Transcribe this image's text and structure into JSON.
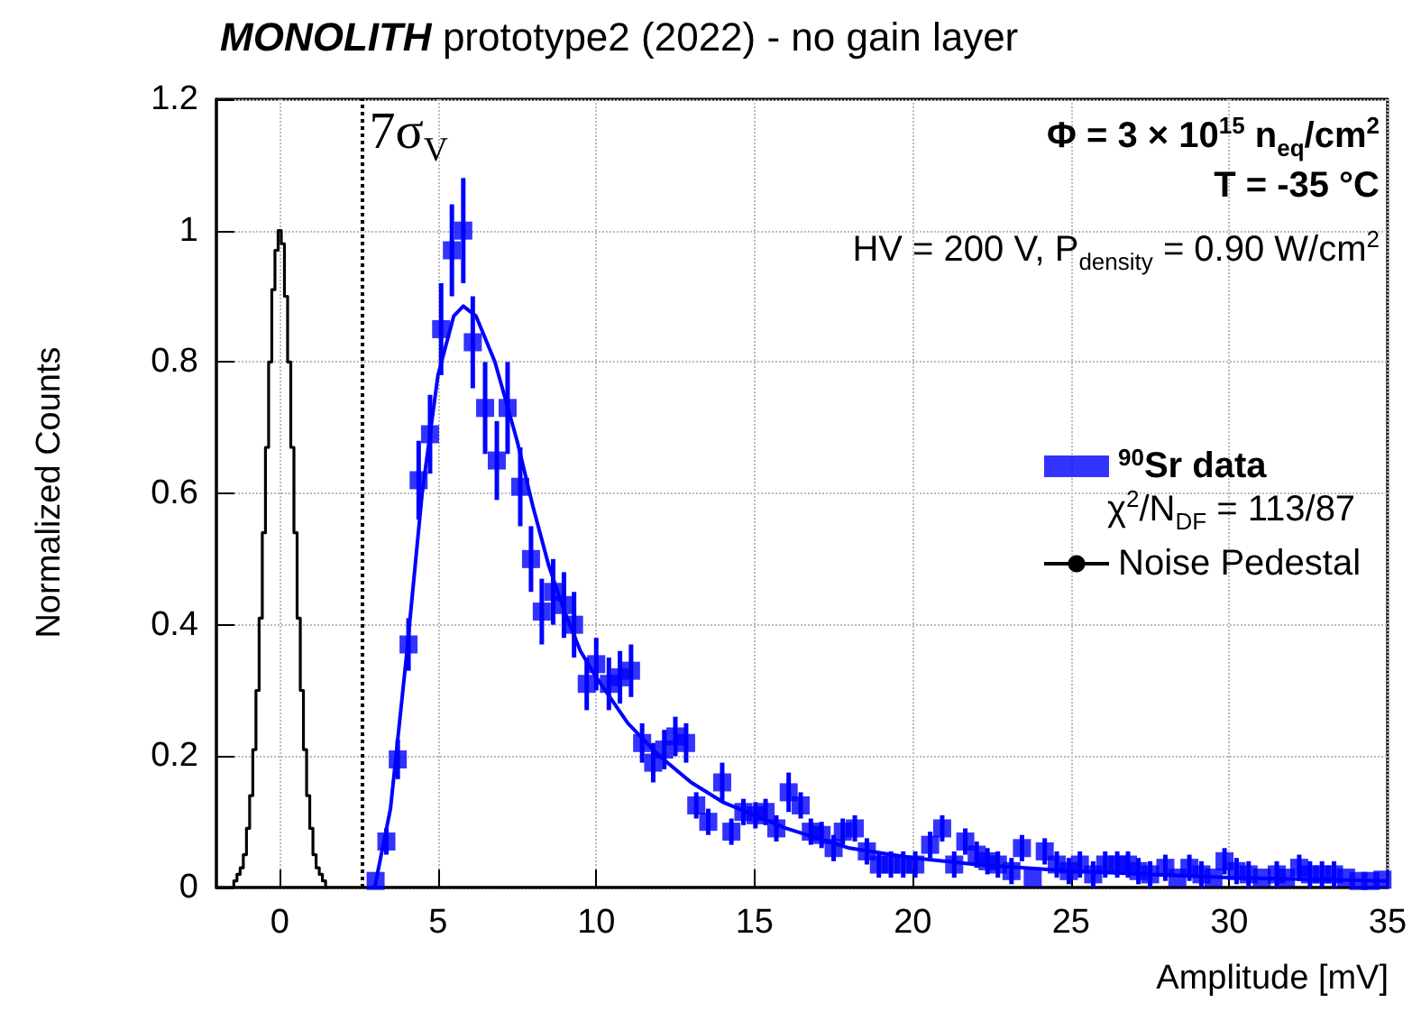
{
  "chart_data": {
    "type": "scatter",
    "title": "MONOLITH prototype2 (2022) - no gain layer",
    "xlabel": "Amplitude [mV]",
    "ylabel": "Normalized Counts",
    "annotations": [
      "Φ = 3 × 10$^{15}$ n$_{eq}$/cm$^{2}$",
      "T = -35 °C",
      "HV = 200 V, P$_{density}$ = 0.90 W/cm$^{2}$",
      "χ$^{2}$/N$_{DF}$ = 113/87"
    ],
    "xlim": [
      -2,
      35
    ],
    "xticks": [
      0,
      5,
      10,
      15,
      20,
      25,
      30,
      35
    ],
    "ylim": [
      0,
      1.2
    ],
    "yticks": [
      0,
      0.2,
      0.4,
      0.6,
      0.8,
      1,
      1.2
    ],
    "grid": true,
    "legend": "right",
    "ref_lines": [
      {
        "axis": "x",
        "value": 2.6,
        "label": "7σ$_{V}$",
        "color": "#000000",
        "line_style": "dotted"
      }
    ],
    "series": [
      {
        "name": "$^{90}$Sr data",
        "marker": "square",
        "color": "#0000ff",
        "x": [
          3.03,
          3.37,
          3.73,
          4.07,
          4.39,
          4.75,
          5.1,
          5.44,
          5.8,
          6.1,
          6.49,
          6.86,
          7.2,
          7.6,
          7.94,
          8.28,
          8.64,
          8.98,
          9.3,
          9.7,
          10.0,
          10.4,
          10.75,
          11.1,
          11.45,
          11.8,
          12.15,
          12.5,
          12.84,
          13.16,
          13.54,
          13.98,
          14.27,
          14.65,
          15.03,
          15.35,
          15.69,
          16.08,
          16.46,
          16.78,
          17.12,
          17.5,
          17.79,
          18.17,
          18.55,
          18.93,
          19.31,
          19.7,
          20.08,
          20.55,
          20.93,
          21.31,
          21.66,
          22.02,
          22.36,
          22.69,
          23.12,
          23.45,
          23.79,
          24.17,
          24.55,
          24.93,
          25.28,
          25.7,
          26.08,
          26.46,
          26.8,
          27.13,
          27.5,
          27.98,
          28.36,
          28.74,
          29.12,
          29.5,
          29.85,
          30.23,
          30.61,
          31.03,
          31.5,
          31.79,
          32.21,
          32.55,
          32.93,
          33.31,
          33.69,
          34.08,
          34.46,
          34.84
        ],
        "values": [
          0.01,
          0.07,
          0.195,
          0.37,
          0.62,
          0.69,
          0.85,
          0.97,
          1.0,
          0.83,
          0.73,
          0.65,
          0.73,
          0.61,
          0.5,
          0.42,
          0.45,
          0.43,
          0.4,
          0.31,
          0.34,
          0.31,
          0.32,
          0.33,
          0.22,
          0.19,
          0.21,
          0.23,
          0.22,
          0.125,
          0.1,
          0.16,
          0.085,
          0.115,
          0.11,
          0.115,
          0.09,
          0.145,
          0.125,
          0.085,
          0.08,
          0.06,
          0.085,
          0.09,
          0.055,
          0.035,
          0.035,
          0.035,
          0.035,
          0.065,
          0.09,
          0.035,
          0.07,
          0.05,
          0.04,
          0.035,
          0.025,
          0.06,
          0.015,
          0.055,
          0.035,
          0.025,
          0.035,
          0.02,
          0.035,
          0.035,
          0.035,
          0.025,
          0.02,
          0.03,
          0.015,
          0.03,
          0.02,
          0.015,
          0.04,
          0.025,
          0.02,
          0.015,
          0.02,
          0.015,
          0.03,
          0.02,
          0.02,
          0.02,
          0.015,
          0.01,
          0.01,
          0.012
        ],
        "errors": [
          null,
          0.02,
          0.03,
          0.04,
          0.06,
          0.06,
          0.07,
          0.07,
          0.08,
          0.07,
          0.07,
          0.06,
          0.07,
          0.06,
          0.05,
          0.05,
          0.05,
          0.05,
          0.05,
          0.04,
          0.04,
          0.04,
          0.04,
          0.04,
          0.03,
          0.03,
          0.03,
          0.03,
          0.03,
          0.02,
          0.02,
          0.03,
          0.02,
          0.02,
          0.02,
          0.02,
          0.02,
          0.03,
          0.02,
          0.02,
          0.02,
          0.02,
          0.02,
          0.02,
          0.02,
          0.02,
          0.02,
          0.02,
          0.02,
          0.02,
          0.02,
          0.02,
          0.02,
          0.02,
          0.02,
          0.02,
          0.02,
          0.02,
          null,
          0.02,
          0.02,
          0.02,
          0.02,
          0.02,
          0.02,
          0.02,
          0.02,
          0.02,
          0.02,
          0.02,
          null,
          0.02,
          0.02,
          null,
          0.02,
          0.02,
          0.02,
          null,
          0.02,
          null,
          0.02,
          0.02,
          0.02,
          0.02,
          null,
          null,
          null,
          null
        ]
      },
      {
        "type": "line",
        "color": "#0000ff",
        "x": [
          3.0,
          3.5,
          4.0,
          4.5,
          5.0,
          5.5,
          5.8,
          6.2,
          6.8,
          7.5,
          8.0,
          8.5,
          9.0,
          9.5,
          10,
          11,
          12,
          13,
          14,
          15,
          16,
          17,
          18,
          20,
          22,
          25,
          30,
          35
        ],
        "values": [
          0.0,
          0.12,
          0.35,
          0.6,
          0.78,
          0.87,
          0.885,
          0.87,
          0.8,
          0.68,
          0.58,
          0.49,
          0.42,
          0.36,
          0.32,
          0.25,
          0.2,
          0.16,
          0.13,
          0.11,
          0.09,
          0.075,
          0.06,
          0.045,
          0.035,
          0.025,
          0.015,
          0.01
        ]
      },
      {
        "name": "Noise Pedestal",
        "type": "step",
        "color": "#000000",
        "x": [
          -1.5,
          -1.4,
          -1.3,
          -1.2,
          -1.1,
          -1.0,
          -0.9,
          -0.8,
          -0.7,
          -0.6,
          -0.5,
          -0.4,
          -0.3,
          -0.2,
          -0.1,
          0,
          0.1,
          0.2,
          0.3,
          0.4,
          0.5,
          0.6,
          0.7,
          0.8,
          0.9,
          1.0,
          1.1,
          1.2,
          1.3,
          1.4,
          1.5
        ],
        "values": [
          0,
          0.01,
          0.02,
          0.03,
          0.05,
          0.09,
          0.14,
          0.21,
          0.3,
          0.41,
          0.54,
          0.67,
          0.8,
          0.91,
          0.97,
          1.0,
          0.98,
          0.9,
          0.8,
          0.67,
          0.54,
          0.41,
          0.3,
          0.21,
          0.14,
          0.09,
          0.05,
          0.03,
          0.02,
          0.01,
          0
        ]
      }
    ]
  }
}
